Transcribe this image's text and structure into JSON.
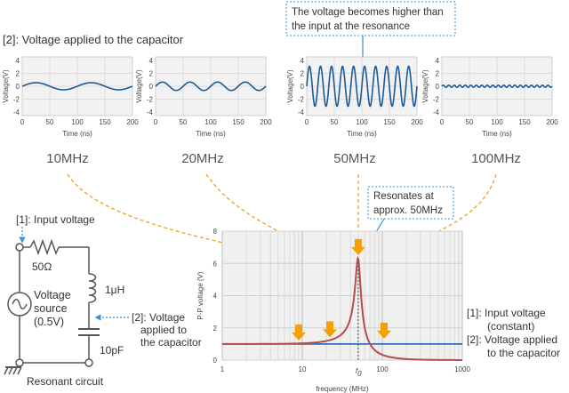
{
  "section_title": "[2]: Voltage applied to the capacitor",
  "callout_top": {
    "line1": "The voltage becomes higher than",
    "line2": "the input at the resonance"
  },
  "callout_resonates": {
    "line1": "Resonates at",
    "line2": "approx. 50MHz"
  },
  "waveforms": {
    "ylabel": "Voltage(V)",
    "xlabel": "Time (ns)",
    "x_ticks": [
      "0",
      "50",
      "100",
      "150",
      "200"
    ],
    "y_ticks": [
      "4",
      "2",
      "0",
      "-2",
      "-4"
    ],
    "panels": [
      {
        "freq_label": "10MHz",
        "freq_mhz": 10,
        "amplitude": 0.55
      },
      {
        "freq_label": "20MHz",
        "freq_mhz": 20,
        "amplitude": 0.65
      },
      {
        "freq_label": "50MHz",
        "freq_mhz": 50,
        "amplitude": 3.1
      },
      {
        "freq_label": "100MHz",
        "freq_mhz": 100,
        "amplitude": 0.17
      }
    ]
  },
  "circuit": {
    "input_label": "[1]: Input voltage",
    "resistor": "50Ω",
    "inductor": "1μH",
    "capacitor": "10pF",
    "source_line1": "Voltage",
    "source_line2": "source",
    "source_line3": "(0.5V)",
    "cap_label_line1": "[2]: Voltage",
    "cap_label_line2": "applied to",
    "cap_label_line3": "the capacitor",
    "caption": "Resonant circuit"
  },
  "chart_data": {
    "type": "line",
    "xlabel": "frequency (MHz)",
    "ylabel": "P-P voltage (V)",
    "x_scale": "log",
    "xlim": [
      1,
      1000
    ],
    "ylim": [
      0,
      8
    ],
    "x_ticks": [
      "1",
      "10",
      "100",
      "1000"
    ],
    "y_ticks": [
      "0",
      "2",
      "4",
      "6",
      "8"
    ],
    "f0_label": "f0",
    "f0_value": 50,
    "series": [
      {
        "name": "[1]: Input voltage (constant)",
        "color": "#2f6fb5",
        "x": [
          1,
          1000
        ],
        "y": [
          1.0,
          1.0
        ]
      },
      {
        "name": "[2]: Voltage applied to the capacitor",
        "color": "#b84a4a",
        "x": [
          1,
          5,
          10,
          20,
          30,
          40,
          45,
          50,
          55,
          60,
          70,
          100,
          200,
          1000
        ],
        "y": [
          1.0,
          1.02,
          1.04,
          1.19,
          1.55,
          2.6,
          3.9,
          6.3,
          3.6,
          2.3,
          1.0,
          0.34,
          0.07,
          0.003
        ]
      }
    ]
  },
  "legend": {
    "item1_line1": "[1]: Input voltage",
    "item1_line2": "(constant)",
    "item2_line1": "[2]: Voltage applied",
    "item2_line2": "to the capacitor"
  },
  "colors": {
    "wave": "#1e5a96",
    "resonance": "#b84a4a",
    "input": "#2f6fb5",
    "arrow": "#f5a000",
    "dashed": "#e8a020",
    "callout": "#3a90d0"
  }
}
